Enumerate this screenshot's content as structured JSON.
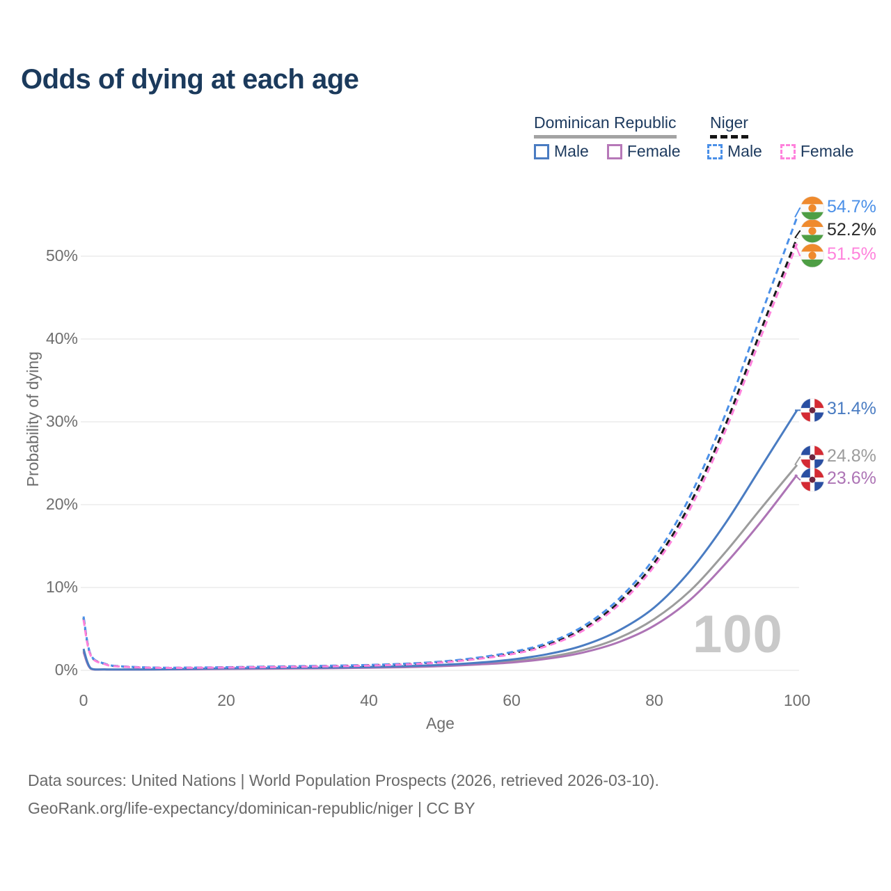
{
  "title": "Odds of dying at each age",
  "watermark_age": "100",
  "legend": {
    "groups": [
      {
        "label": "Dominican Republic",
        "line_style": "solid",
        "line_color": "#a3a3a3"
      },
      {
        "label": "Niger",
        "line_style": "dashed",
        "line_color": "#141414"
      }
    ],
    "items": [
      {
        "label": "Male",
        "group": 0,
        "color": "#4a7cc2",
        "dashed": false
      },
      {
        "label": "Female",
        "group": 0,
        "color": "#b678b8",
        "dashed": false
      },
      {
        "label": "Male",
        "group": 1,
        "color": "#4b90e8",
        "dashed": true
      },
      {
        "label": "Female",
        "group": 1,
        "color": "#ff82dc",
        "dashed": true
      }
    ]
  },
  "chart_data": {
    "type": "line",
    "title": "Odds of dying at each age",
    "xlabel": "Age",
    "ylabel": "Probability of dying",
    "xlim": [
      0,
      100
    ],
    "ylim": [
      0,
      57
    ],
    "x_ticks": [
      0,
      20,
      40,
      60,
      80,
      100
    ],
    "y_ticks": [
      {
        "v": 0,
        "label": "0%"
      },
      {
        "v": 10,
        "label": "10%"
      },
      {
        "v": 20,
        "label": "20%"
      },
      {
        "v": 30,
        "label": "30%"
      },
      {
        "v": 40,
        "label": "40%"
      },
      {
        "v": 50,
        "label": "50%"
      }
    ],
    "grid": true,
    "legend_position": "top-right",
    "series": [
      {
        "id": "dominican-republic-both",
        "name": "Dominican Republic (both sexes)",
        "color": "#9c9c9c",
        "dashed": false,
        "flag": "dominican-republic",
        "end_label": "24.8%",
        "label_dy": -11,
        "points": [
          [
            0,
            2.4
          ],
          [
            1,
            0.22
          ],
          [
            3,
            0.11
          ],
          [
            5,
            0.09
          ],
          [
            10,
            0.11
          ],
          [
            15,
            0.15
          ],
          [
            20,
            0.2
          ],
          [
            25,
            0.23
          ],
          [
            30,
            0.26
          ],
          [
            35,
            0.3
          ],
          [
            40,
            0.35
          ],
          [
            45,
            0.43
          ],
          [
            50,
            0.56
          ],
          [
            55,
            0.78
          ],
          [
            60,
            1.1
          ],
          [
            65,
            1.6
          ],
          [
            70,
            2.45
          ],
          [
            75,
            3.9
          ],
          [
            80,
            6.2
          ],
          [
            85,
            9.6
          ],
          [
            90,
            14.3
          ],
          [
            95,
            19.6
          ],
          [
            100,
            24.8
          ]
        ]
      },
      {
        "id": "dominican-republic-female",
        "name": "Dominican Republic Female",
        "color": "#ad74b5",
        "dashed": false,
        "flag": "dominican-republic",
        "end_label": "23.6%",
        "label_dy": 7,
        "points": [
          [
            0,
            2.2
          ],
          [
            1,
            0.2
          ],
          [
            3,
            0.1
          ],
          [
            5,
            0.08
          ],
          [
            10,
            0.1
          ],
          [
            15,
            0.13
          ],
          [
            20,
            0.17
          ],
          [
            25,
            0.2
          ],
          [
            30,
            0.23
          ],
          [
            35,
            0.26
          ],
          [
            40,
            0.31
          ],
          [
            45,
            0.38
          ],
          [
            50,
            0.5
          ],
          [
            55,
            0.7
          ],
          [
            60,
            0.95
          ],
          [
            65,
            1.4
          ],
          [
            70,
            2.15
          ],
          [
            75,
            3.4
          ],
          [
            80,
            5.4
          ],
          [
            85,
            8.5
          ],
          [
            90,
            12.9
          ],
          [
            95,
            18.0
          ],
          [
            100,
            23.6
          ]
        ]
      },
      {
        "id": "dominican-republic-male",
        "name": "Dominican Republic Male",
        "color": "#4a7cc2",
        "dashed": false,
        "flag": "dominican-republic",
        "end_label": "31.4%",
        "label_dy": 0,
        "points": [
          [
            0,
            2.6
          ],
          [
            1,
            0.25
          ],
          [
            3,
            0.12
          ],
          [
            5,
            0.1
          ],
          [
            10,
            0.12
          ],
          [
            15,
            0.18
          ],
          [
            20,
            0.24
          ],
          [
            25,
            0.27
          ],
          [
            30,
            0.3
          ],
          [
            35,
            0.34
          ],
          [
            40,
            0.4
          ],
          [
            45,
            0.5
          ],
          [
            50,
            0.65
          ],
          [
            55,
            0.9
          ],
          [
            60,
            1.3
          ],
          [
            65,
            1.95
          ],
          [
            70,
            3.0
          ],
          [
            75,
            4.8
          ],
          [
            80,
            7.6
          ],
          [
            85,
            12.0
          ],
          [
            90,
            17.8
          ],
          [
            95,
            24.6
          ],
          [
            100,
            31.4
          ]
        ]
      },
      {
        "id": "niger-both",
        "name": "Niger (both sexes)",
        "color": "#1a1a1a",
        "dashed": true,
        "flag": "niger",
        "end_label": "52.2%",
        "label_dy": -10,
        "points": [
          [
            0,
            6.3
          ],
          [
            1,
            1.85
          ],
          [
            3,
            0.77
          ],
          [
            5,
            0.48
          ],
          [
            10,
            0.31
          ],
          [
            15,
            0.31
          ],
          [
            20,
            0.36
          ],
          [
            25,
            0.41
          ],
          [
            30,
            0.46
          ],
          [
            35,
            0.52
          ],
          [
            40,
            0.61
          ],
          [
            45,
            0.76
          ],
          [
            50,
            1.0
          ],
          [
            55,
            1.42
          ],
          [
            60,
            2.05
          ],
          [
            65,
            3.1
          ],
          [
            70,
            5.0
          ],
          [
            75,
            8.2
          ],
          [
            80,
            13.0
          ],
          [
            85,
            20.1
          ],
          [
            90,
            29.7
          ],
          [
            95,
            41.2
          ],
          [
            100,
            52.2
          ]
        ]
      },
      {
        "id": "niger-male",
        "name": "Niger Male",
        "color": "#4b90e8",
        "dashed": true,
        "flag": "niger",
        "end_label": "54.7%",
        "label_dy": -13,
        "points": [
          [
            0,
            6.5
          ],
          [
            1,
            1.9
          ],
          [
            3,
            0.8
          ],
          [
            5,
            0.5
          ],
          [
            10,
            0.33
          ],
          [
            15,
            0.33
          ],
          [
            20,
            0.38
          ],
          [
            25,
            0.44
          ],
          [
            30,
            0.5
          ],
          [
            35,
            0.56
          ],
          [
            40,
            0.65
          ],
          [
            45,
            0.8
          ],
          [
            50,
            1.05
          ],
          [
            55,
            1.5
          ],
          [
            60,
            2.2
          ],
          [
            65,
            3.3
          ],
          [
            70,
            5.3
          ],
          [
            75,
            8.6
          ],
          [
            80,
            13.6
          ],
          [
            85,
            21.0
          ],
          [
            90,
            31.0
          ],
          [
            95,
            43.0
          ],
          [
            100,
            54.7
          ]
        ]
      },
      {
        "id": "niger-female",
        "name": "Niger Female",
        "color": "#ff82dc",
        "dashed": true,
        "flag": "niger",
        "end_label": "51.5%",
        "label_dy": 17,
        "points": [
          [
            0,
            6.1
          ],
          [
            1,
            1.8
          ],
          [
            3,
            0.74
          ],
          [
            5,
            0.46
          ],
          [
            10,
            0.3
          ],
          [
            15,
            0.3
          ],
          [
            20,
            0.34
          ],
          [
            25,
            0.38
          ],
          [
            30,
            0.43
          ],
          [
            35,
            0.49
          ],
          [
            40,
            0.57
          ],
          [
            45,
            0.71
          ],
          [
            50,
            0.94
          ],
          [
            55,
            1.35
          ],
          [
            60,
            1.95
          ],
          [
            65,
            2.95
          ],
          [
            70,
            4.8
          ],
          [
            75,
            7.9
          ],
          [
            80,
            12.6
          ],
          [
            85,
            19.5
          ],
          [
            90,
            29.0
          ],
          [
            95,
            40.4
          ],
          [
            100,
            51.5
          ]
        ]
      }
    ]
  },
  "flag_colors": {
    "niger": {
      "orange": "#ef8a2d",
      "white": "#fafafa",
      "green": "#4e9e44"
    },
    "dominican-republic": {
      "blue": "#2a4fa2",
      "red": "#d42a33",
      "white": "#ffffff",
      "emblem": "#6e2640"
    }
  },
  "footer": {
    "line1": "Data sources: United Nations | World Population Prospects (2026, retrieved 2026-03-10).",
    "line2": "GeoRank.org/life-expectancy/dominican-republic/niger | CC BY"
  }
}
